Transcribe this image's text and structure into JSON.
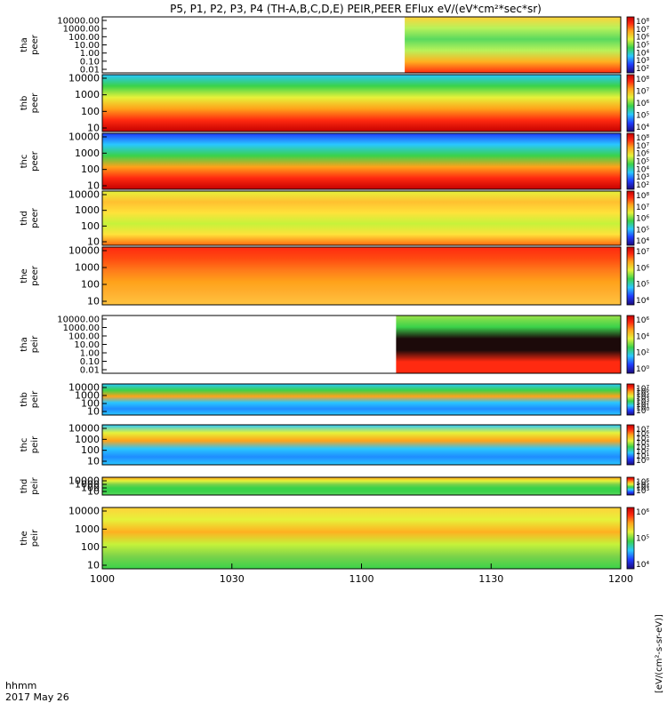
{
  "chart_data": {
    "type": "heatmap",
    "title": "P5, P1, P2, P3, P4 (TH-A,B,C,D,E) PEIR,PEER EFlux eV/(eV*cm²*sec*sr)",
    "x_ticks": [
      "1000",
      "1030",
      "1100",
      "1130",
      "1200"
    ],
    "x_range_minutes": [
      0,
      120
    ],
    "x_annotation": "hhmm",
    "date_label": "2017 May 26",
    "colorbar_unit_label": "[eV/(cm²-s-sr-eV)]",
    "panels": [
      {
        "probe": "tha",
        "species": "peer",
        "y_ticks": [
          "10000.00",
          "1000.00",
          "100.00",
          "10.00",
          "1.00",
          "0.10",
          "0.01"
        ],
        "cbar_ticks": [
          "10⁸",
          "10⁷",
          "10⁶",
          "10⁵",
          "10⁴",
          "10³",
          "10²"
        ],
        "data_start_minute": 70
      },
      {
        "probe": "thb",
        "species": "peer",
        "y_ticks": [
          "10000",
          "1000",
          "100",
          "10"
        ],
        "cbar_ticks": [
          "10⁸",
          "10⁷",
          "10⁶",
          "10⁵",
          "10⁴"
        ],
        "data_start_minute": 0
      },
      {
        "probe": "thc",
        "species": "peer",
        "y_ticks": [
          "10000",
          "1000",
          "100",
          "10"
        ],
        "cbar_ticks": [
          "10⁸",
          "10⁷",
          "10⁶",
          "10⁵",
          "10⁴",
          "10³",
          "10²"
        ],
        "data_start_minute": 0
      },
      {
        "probe": "thd",
        "species": "peer",
        "y_ticks": [
          "10000",
          "1000",
          "100",
          "10"
        ],
        "cbar_ticks": [
          "10⁸",
          "10⁷",
          "10⁶",
          "10⁵",
          "10⁴"
        ],
        "data_start_minute": 0
      },
      {
        "probe": "the",
        "species": "peer",
        "y_ticks": [
          "10000",
          "1000",
          "100",
          "10"
        ],
        "cbar_ticks": [
          "10⁷",
          "10⁶",
          "10⁵",
          "10⁴"
        ],
        "data_start_minute": 0
      },
      {
        "probe": "tha",
        "species": "peir",
        "y_ticks": [
          "10000.00",
          "1000.00",
          "100.00",
          "10.00",
          "1.00",
          "0.10",
          "0.01"
        ],
        "cbar_ticks": [
          "10⁶",
          "10⁴",
          "10²",
          "10⁰"
        ],
        "data_start_minute": 68
      },
      {
        "probe": "thb",
        "species": "peir",
        "y_ticks": [
          "10000",
          "1000",
          "100",
          "10"
        ],
        "cbar_ticks": [
          "10⁷",
          "10⁶",
          "10⁵",
          "10⁴",
          "10³",
          "10²",
          "10¹",
          "10⁰"
        ],
        "data_start_minute": 0
      },
      {
        "probe": "thc",
        "species": "peir",
        "y_ticks": [
          "10000",
          "1000",
          "100",
          "10"
        ],
        "cbar_ticks": [
          "10⁷",
          "10⁶",
          "10⁵",
          "10⁴",
          "10³",
          "10²",
          "10¹",
          "10⁰"
        ],
        "data_start_minute": 0
      },
      {
        "probe": "thd",
        "species": "peir",
        "y_ticks": [
          "10000",
          "1000",
          "100",
          "10"
        ],
        "cbar_ticks": [
          "10⁶",
          "10⁵",
          "10⁴",
          "10³"
        ],
        "data_start_minute": 0
      },
      {
        "probe": "the",
        "species": "peir",
        "y_ticks": [
          "10000",
          "1000",
          "100",
          "10"
        ],
        "cbar_ticks": [
          "10⁶",
          "10⁵",
          "10⁴"
        ],
        "data_start_minute": 0
      }
    ]
  }
}
